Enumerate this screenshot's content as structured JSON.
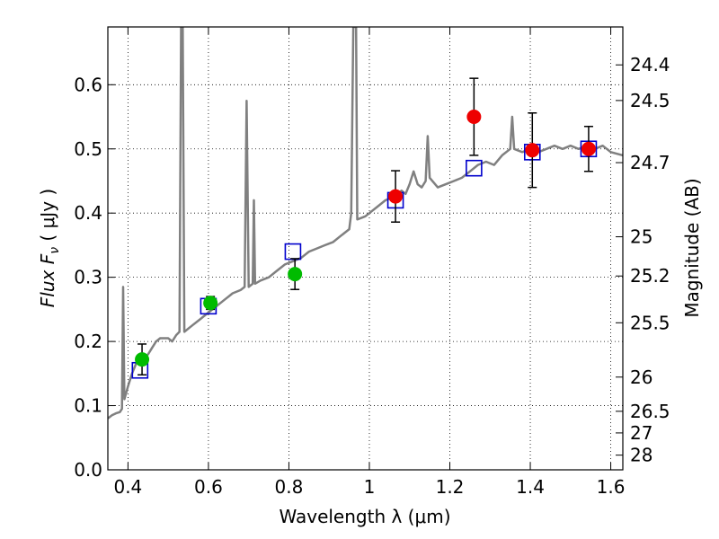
{
  "chart_data": {
    "type": "scatter",
    "xlabel": "Wavelength  λ (μm)",
    "ylabel": "Flux  F",
    "ylabel_sub": "ν",
    "ylabel_unit": " ( μJy )",
    "y2label": "Magnitude (AB)",
    "xlim": [
      0.35,
      1.63
    ],
    "ylim": [
      0.0,
      0.69
    ],
    "grid": true,
    "x_ticks": [
      {
        "value": 0.4,
        "label": "0.4"
      },
      {
        "value": 0.6,
        "label": "0.6"
      },
      {
        "value": 0.8,
        "label": "0.8"
      },
      {
        "value": 1.0,
        "label": "1"
      },
      {
        "value": 1.2,
        "label": "1.2"
      },
      {
        "value": 1.4,
        "label": "1.4"
      },
      {
        "value": 1.6,
        "label": "1.6"
      }
    ],
    "y_ticks": [
      {
        "value": 0.0,
        "label": "0.0"
      },
      {
        "value": 0.1,
        "label": "0.1"
      },
      {
        "value": 0.2,
        "label": "0.2"
      },
      {
        "value": 0.3,
        "label": "0.3"
      },
      {
        "value": 0.4,
        "label": "0.4"
      },
      {
        "value": 0.5,
        "label": "0.5"
      },
      {
        "value": 0.6,
        "label": "0.6"
      }
    ],
    "mag_ticks": [
      {
        "flux": 0.6309,
        "label": "24.4"
      },
      {
        "flux": 0.5754,
        "label": "24.5"
      },
      {
        "flux": 0.4786,
        "label": "24.7"
      },
      {
        "flux": 0.3631,
        "label": "25"
      },
      {
        "flux": 0.302,
        "label": "25.2"
      },
      {
        "flux": 0.2291,
        "label": "25.5"
      },
      {
        "flux": 0.1445,
        "label": "26"
      },
      {
        "flux": 0.0912,
        "label": "26.5"
      },
      {
        "flux": 0.0575,
        "label": "27"
      },
      {
        "flux": 0.0229,
        "label": "28"
      }
    ],
    "series": [
      {
        "kind": "line",
        "color": "#808080",
        "points": [
          [
            0.35,
            0.08
          ],
          [
            0.36,
            0.085
          ],
          [
            0.37,
            0.088
          ],
          [
            0.38,
            0.09
          ],
          [
            0.385,
            0.095
          ],
          [
            0.388,
            0.285
          ],
          [
            0.391,
            0.11
          ],
          [
            0.4,
            0.13
          ],
          [
            0.41,
            0.15
          ],
          [
            0.42,
            0.165
          ],
          [
            0.43,
            0.17
          ],
          [
            0.44,
            0.175
          ],
          [
            0.45,
            0.18
          ],
          [
            0.46,
            0.19
          ],
          [
            0.47,
            0.2
          ],
          [
            0.48,
            0.205
          ],
          [
            0.5,
            0.205
          ],
          [
            0.51,
            0.2
          ],
          [
            0.52,
            0.21
          ],
          [
            0.528,
            0.215
          ],
          [
            0.532,
            0.69
          ],
          [
            0.536,
            0.69
          ],
          [
            0.54,
            0.215
          ],
          [
            0.55,
            0.22
          ],
          [
            0.56,
            0.225
          ],
          [
            0.58,
            0.235
          ],
          [
            0.6,
            0.245
          ],
          [
            0.62,
            0.255
          ],
          [
            0.64,
            0.265
          ],
          [
            0.66,
            0.275
          ],
          [
            0.68,
            0.28
          ],
          [
            0.69,
            0.285
          ],
          [
            0.695,
            0.575
          ],
          [
            0.7,
            0.285
          ],
          [
            0.71,
            0.29
          ],
          [
            0.713,
            0.42
          ],
          [
            0.716,
            0.29
          ],
          [
            0.73,
            0.295
          ],
          [
            0.75,
            0.3
          ],
          [
            0.77,
            0.31
          ],
          [
            0.79,
            0.32
          ],
          [
            0.81,
            0.325
          ],
          [
            0.83,
            0.33
          ],
          [
            0.85,
            0.34
          ],
          [
            0.87,
            0.345
          ],
          [
            0.89,
            0.35
          ],
          [
            0.91,
            0.355
          ],
          [
            0.93,
            0.365
          ],
          [
            0.95,
            0.375
          ],
          [
            0.955,
            0.4
          ],
          [
            0.96,
            0.69
          ],
          [
            0.967,
            0.69
          ],
          [
            0.97,
            0.39
          ],
          [
            0.99,
            0.395
          ],
          [
            1.0,
            0.4
          ],
          [
            1.02,
            0.41
          ],
          [
            1.04,
            0.42
          ],
          [
            1.06,
            0.425
          ],
          [
            1.08,
            0.435
          ],
          [
            1.09,
            0.43
          ],
          [
            1.1,
            0.445
          ],
          [
            1.11,
            0.465
          ],
          [
            1.12,
            0.445
          ],
          [
            1.13,
            0.44
          ],
          [
            1.14,
            0.45
          ],
          [
            1.145,
            0.52
          ],
          [
            1.15,
            0.455
          ],
          [
            1.17,
            0.44
          ],
          [
            1.19,
            0.445
          ],
          [
            1.21,
            0.45
          ],
          [
            1.23,
            0.455
          ],
          [
            1.25,
            0.465
          ],
          [
            1.27,
            0.475
          ],
          [
            1.29,
            0.48
          ],
          [
            1.31,
            0.475
          ],
          [
            1.33,
            0.49
          ],
          [
            1.35,
            0.5
          ],
          [
            1.355,
            0.55
          ],
          [
            1.36,
            0.5
          ],
          [
            1.38,
            0.495
          ],
          [
            1.4,
            0.5
          ],
          [
            1.42,
            0.495
          ],
          [
            1.44,
            0.5
          ],
          [
            1.46,
            0.505
          ],
          [
            1.48,
            0.5
          ],
          [
            1.5,
            0.505
          ],
          [
            1.52,
            0.5
          ],
          [
            1.54,
            0.505
          ],
          [
            1.56,
            0.5
          ],
          [
            1.58,
            0.505
          ],
          [
            1.6,
            0.495
          ],
          [
            1.63,
            0.49
          ]
        ]
      },
      {
        "kind": "open-squares",
        "color": "#0000cc",
        "points": [
          [
            0.43,
            0.155
          ],
          [
            0.6,
            0.255
          ],
          [
            0.81,
            0.34
          ],
          [
            1.065,
            0.42
          ],
          [
            1.26,
            0.47
          ],
          [
            1.405,
            0.495
          ],
          [
            1.545,
            0.5
          ]
        ]
      },
      {
        "kind": "filled-circles",
        "color": "#00bb00",
        "points": [
          {
            "x": 0.435,
            "y": 0.172,
            "err": 0.024
          },
          {
            "x": 0.605,
            "y": 0.26,
            "err": 0.01
          },
          {
            "x": 0.815,
            "y": 0.305,
            "err": 0.024
          }
        ]
      },
      {
        "kind": "filled-circles",
        "color": "#ee0000",
        "points": [
          {
            "x": 1.065,
            "y": 0.426,
            "err": 0.04
          },
          {
            "x": 1.26,
            "y": 0.55,
            "err": 0.06
          },
          {
            "x": 1.405,
            "y": 0.498,
            "err": 0.058
          },
          {
            "x": 1.545,
            "y": 0.5,
            "err": 0.035
          }
        ]
      }
    ]
  }
}
